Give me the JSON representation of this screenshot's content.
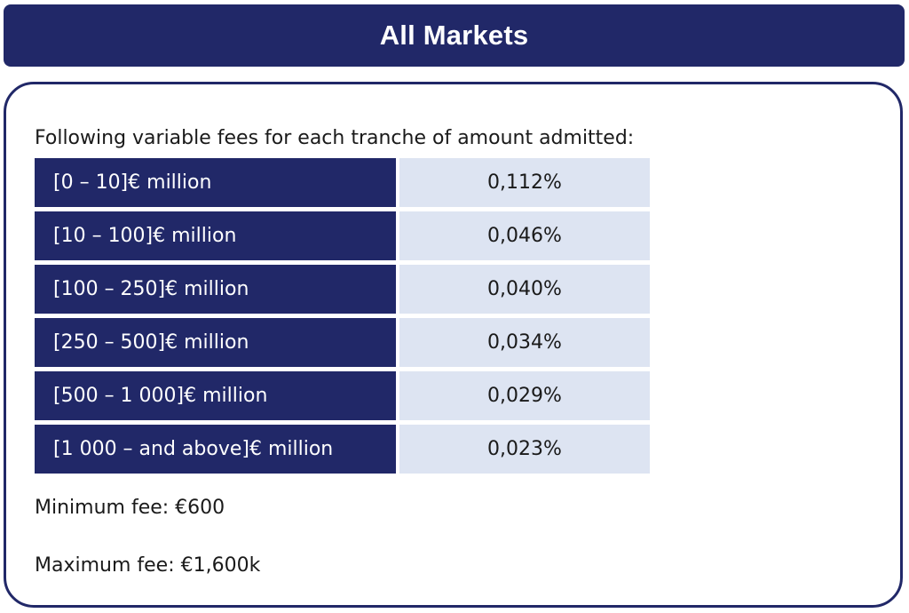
{
  "header": {
    "title": "All Markets"
  },
  "panel": {
    "intro_text": "Following variable fees for each tranche of amount admitted:",
    "fee_rows": [
      {
        "range": "[0 – 10]€ million",
        "rate": "0,112%"
      },
      {
        "range": "[10 – 100]€ million",
        "rate": "0,046%"
      },
      {
        "range": "[100 – 250]€ million",
        "rate": "0,040%"
      },
      {
        "range": "[250 – 500]€ million",
        "rate": "0,034%"
      },
      {
        "range": "[500 – 1 000]€ million",
        "rate": "0,029%"
      },
      {
        "range": "[1 000 – and above]€ million",
        "rate": "0,023%"
      }
    ],
    "minimum_fee": "Minimum fee: €600",
    "maximum_fee": "Maximum fee: €1,600k"
  },
  "colors": {
    "navy": "#212868",
    "light_blue": "#dde4f2",
    "text": "#1a1a1a"
  }
}
